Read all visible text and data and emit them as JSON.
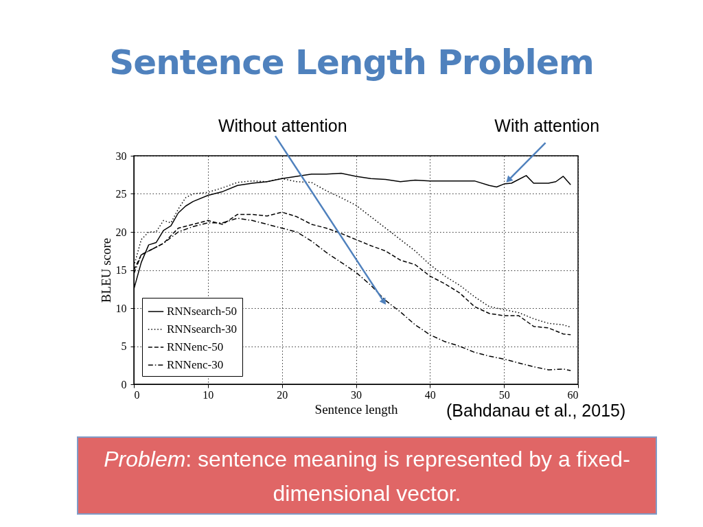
{
  "chart_data": {
    "type": "line",
    "title": "Sentence Length Problem",
    "xlabel": "Sentence length",
    "ylabel": "BLEU score",
    "xlim": [
      0,
      60
    ],
    "ylim": [
      0,
      30
    ],
    "xticks": [
      0,
      10,
      20,
      30,
      40,
      50,
      60
    ],
    "yticks": [
      0,
      5,
      10,
      15,
      20,
      25,
      30
    ],
    "grid": true,
    "legend": "bottom left",
    "series": [
      {
        "name": "RNNsearch-50",
        "color": "#000000",
        "line_style": "solid",
        "x": [
          0,
          1,
          2,
          3,
          4,
          5,
          6,
          7,
          8,
          10,
          12,
          14,
          16,
          18,
          20,
          22,
          24,
          26,
          28,
          30,
          32,
          34,
          36,
          38,
          40,
          42,
          44,
          46,
          48,
          49,
          50,
          51,
          53,
          54,
          56,
          57,
          58,
          59
        ],
        "values": [
          12.5,
          16,
          18.3,
          18.6,
          20.2,
          20.8,
          22.5,
          23.4,
          24,
          24.8,
          25.3,
          26.1,
          26.4,
          26.6,
          27,
          27.3,
          27.6,
          27.6,
          27.7,
          27.3,
          27,
          26.9,
          26.6,
          26.8,
          26.7,
          26.7,
          26.7,
          26.7,
          26.1,
          25.9,
          26.3,
          26.4,
          27.4,
          26.4,
          26.4,
          26.6,
          27.3,
          26.2
        ]
      },
      {
        "name": "RNNsearch-30",
        "color": "#000000",
        "line_style": "dotted",
        "x": [
          0,
          1,
          2,
          3,
          4,
          5,
          6,
          7,
          8,
          10,
          12,
          14,
          16,
          18,
          20,
          22,
          24,
          26,
          28,
          30,
          32,
          34,
          36,
          38,
          40,
          42,
          44,
          46,
          48,
          50,
          52,
          54,
          56,
          58,
          59
        ],
        "values": [
          15.5,
          19,
          20,
          20,
          21.5,
          21.2,
          23,
          24.5,
          25,
          25.2,
          25.8,
          26.5,
          26.7,
          26.6,
          27,
          26.6,
          26.5,
          25.4,
          24.5,
          23.5,
          22,
          20.5,
          19,
          17.5,
          15.7,
          14.2,
          13,
          11.5,
          10.2,
          9.8,
          9.4,
          8.6,
          8,
          7.8,
          7.5
        ]
      },
      {
        "name": "RNNenc-50",
        "color": "#000000",
        "line_style": "dashed",
        "x": [
          0,
          1,
          2,
          4,
          5,
          6,
          8,
          10,
          12,
          14,
          16,
          18,
          20,
          22,
          24,
          26,
          28,
          30,
          32,
          34,
          36,
          38,
          40,
          42,
          44,
          46,
          48,
          50,
          52,
          54,
          56,
          58,
          59
        ],
        "values": [
          15,
          17,
          17.5,
          18.5,
          19.5,
          20.5,
          21,
          21.5,
          21,
          22.3,
          22.3,
          22.1,
          22.6,
          22,
          21,
          20.5,
          19.8,
          19,
          18.2,
          17.5,
          16.3,
          15.7,
          14.2,
          13.2,
          12,
          10.2,
          9.3,
          9,
          9,
          7.6,
          7.4,
          6.6,
          6.5
        ]
      },
      {
        "name": "RNNenc-30",
        "color": "#000000",
        "line_style": "dashdot",
        "x": [
          0,
          1,
          2,
          4,
          6,
          8,
          10,
          12,
          14,
          16,
          18,
          20,
          22,
          24,
          26,
          28,
          30,
          32,
          34,
          36,
          38,
          40,
          42,
          44,
          46,
          48,
          50,
          52,
          54,
          56,
          58,
          59
        ],
        "values": [
          14.5,
          17,
          17.5,
          18.5,
          20,
          20.7,
          21.2,
          21.2,
          21.8,
          21.5,
          21,
          20.5,
          20,
          18.8,
          17.3,
          16,
          14.7,
          13,
          11,
          9.5,
          7.8,
          6.5,
          5.6,
          5,
          4.2,
          3.7,
          3.3,
          2.8,
          2.3,
          1.9,
          2,
          1.8
        ]
      }
    ],
    "annotations": [
      {
        "text": "Without attention",
        "x": 33.8,
        "y": 10.8
      },
      {
        "text": "With attention",
        "x": 50.6,
        "y": 26.8
      },
      "(Bahdanau et al., 2015)",
      "Problem: sentence meaning is represented by a fixed-dimensional vector."
    ]
  }
}
